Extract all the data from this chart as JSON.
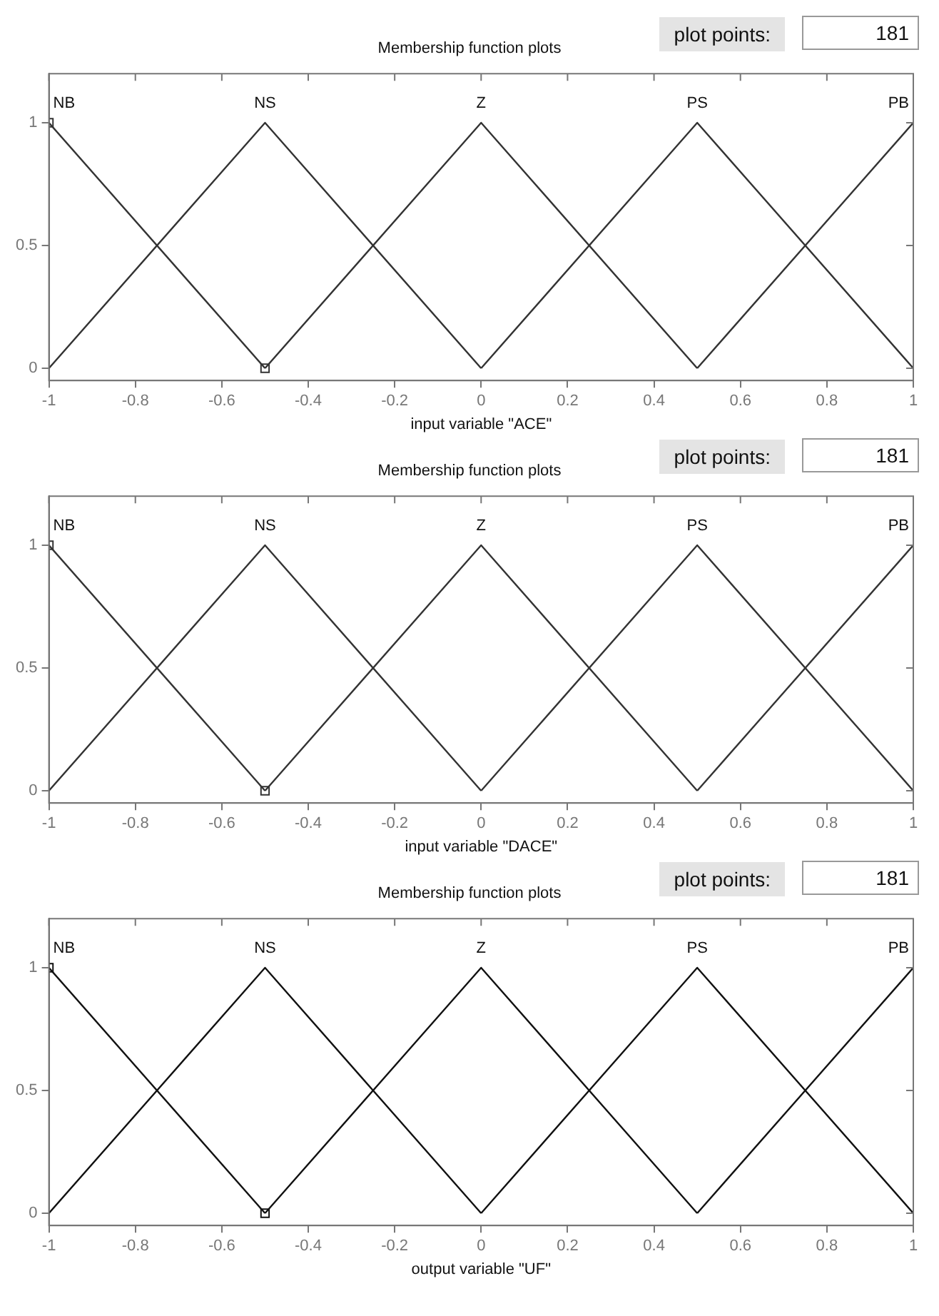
{
  "chart_data": [
    {
      "type": "line",
      "title": "Membership function plots",
      "xlabel": "input variable \"ACE\"",
      "annotations": [
        "plot points:",
        "181"
      ],
      "xlim": [
        -1,
        1
      ],
      "xticks": [
        -1,
        -0.8,
        -0.6,
        -0.4,
        -0.2,
        0,
        0.2,
        0.4,
        0.6,
        0.8,
        1
      ],
      "ylim": [
        -0.05,
        1.2
      ],
      "yticks": [
        0,
        0.5,
        1
      ],
      "grid": false,
      "legend": false,
      "line_style": "solid",
      "series": [
        {
          "name": "NB",
          "color": "#333333",
          "marker": "square",
          "x": [
            -1,
            -0.5
          ],
          "values": [
            1,
            0
          ]
        },
        {
          "name": "NS",
          "color": "#333333",
          "marker": "none",
          "x": [
            -1,
            -0.5,
            0
          ],
          "values": [
            0,
            1,
            0
          ]
        },
        {
          "name": "Z",
          "color": "#333333",
          "marker": "none",
          "x": [
            -0.5,
            0,
            0.5
          ],
          "values": [
            0,
            1,
            0
          ]
        },
        {
          "name": "PS",
          "color": "#333333",
          "marker": "none",
          "x": [
            0,
            0.5,
            1
          ],
          "values": [
            0,
            1,
            0
          ]
        },
        {
          "name": "PB",
          "color": "#333333",
          "marker": "none",
          "x": [
            0.5,
            1
          ],
          "values": [
            0,
            1
          ]
        }
      ]
    },
    {
      "type": "line",
      "title": "Membership function plots",
      "xlabel": "input variable \"DACE\"",
      "annotations": [
        "plot points:",
        "181"
      ],
      "xlim": [
        -1,
        1
      ],
      "xticks": [
        -1,
        -0.8,
        -0.6,
        -0.4,
        -0.2,
        0,
        0.2,
        0.4,
        0.6,
        0.8,
        1
      ],
      "ylim": [
        -0.05,
        1.2
      ],
      "yticks": [
        0,
        0.5,
        1
      ],
      "grid": false,
      "legend": false,
      "line_style": "solid",
      "series": [
        {
          "name": "NB",
          "color": "#333333",
          "marker": "square",
          "x": [
            -1,
            -0.5
          ],
          "values": [
            1,
            0
          ]
        },
        {
          "name": "NS",
          "color": "#333333",
          "marker": "none",
          "x": [
            -1,
            -0.5,
            0
          ],
          "values": [
            0,
            1,
            0
          ]
        },
        {
          "name": "Z",
          "color": "#333333",
          "marker": "none",
          "x": [
            -0.5,
            0,
            0.5
          ],
          "values": [
            0,
            1,
            0
          ]
        },
        {
          "name": "PS",
          "color": "#333333",
          "marker": "none",
          "x": [
            0,
            0.5,
            1
          ],
          "values": [
            0,
            1,
            0
          ]
        },
        {
          "name": "PB",
          "color": "#333333",
          "marker": "none",
          "x": [
            0.5,
            1
          ],
          "values": [
            0,
            1
          ]
        }
      ]
    },
    {
      "type": "line",
      "title": "Membership function plots",
      "xlabel": "output variable \"UF\"",
      "annotations": [
        "plot points:",
        "181"
      ],
      "xlim": [
        -1,
        1
      ],
      "xticks": [
        -1,
        -0.8,
        -0.6,
        -0.4,
        -0.2,
        0,
        0.2,
        0.4,
        0.6,
        0.8,
        1
      ],
      "ylim": [
        -0.05,
        1.2
      ],
      "yticks": [
        0,
        0.5,
        1
      ],
      "grid": false,
      "legend": false,
      "line_style": "solid",
      "series": [
        {
          "name": "NB",
          "color": "#111111",
          "marker": "square",
          "x": [
            -1,
            -0.5
          ],
          "values": [
            1,
            0
          ]
        },
        {
          "name": "NS",
          "color": "#111111",
          "marker": "none",
          "x": [
            -1,
            -0.5,
            0
          ],
          "values": [
            0,
            1,
            0
          ]
        },
        {
          "name": "Z",
          "color": "#111111",
          "marker": "none",
          "x": [
            -0.5,
            0,
            0.5
          ],
          "values": [
            0,
            1,
            0
          ]
        },
        {
          "name": "PS",
          "color": "#111111",
          "marker": "none",
          "x": [
            0,
            0.5,
            1
          ],
          "values": [
            0,
            1,
            0
          ]
        },
        {
          "name": "PB",
          "color": "#111111",
          "marker": "none",
          "x": [
            0.5,
            1
          ],
          "values": [
            0,
            1
          ]
        }
      ]
    }
  ]
}
